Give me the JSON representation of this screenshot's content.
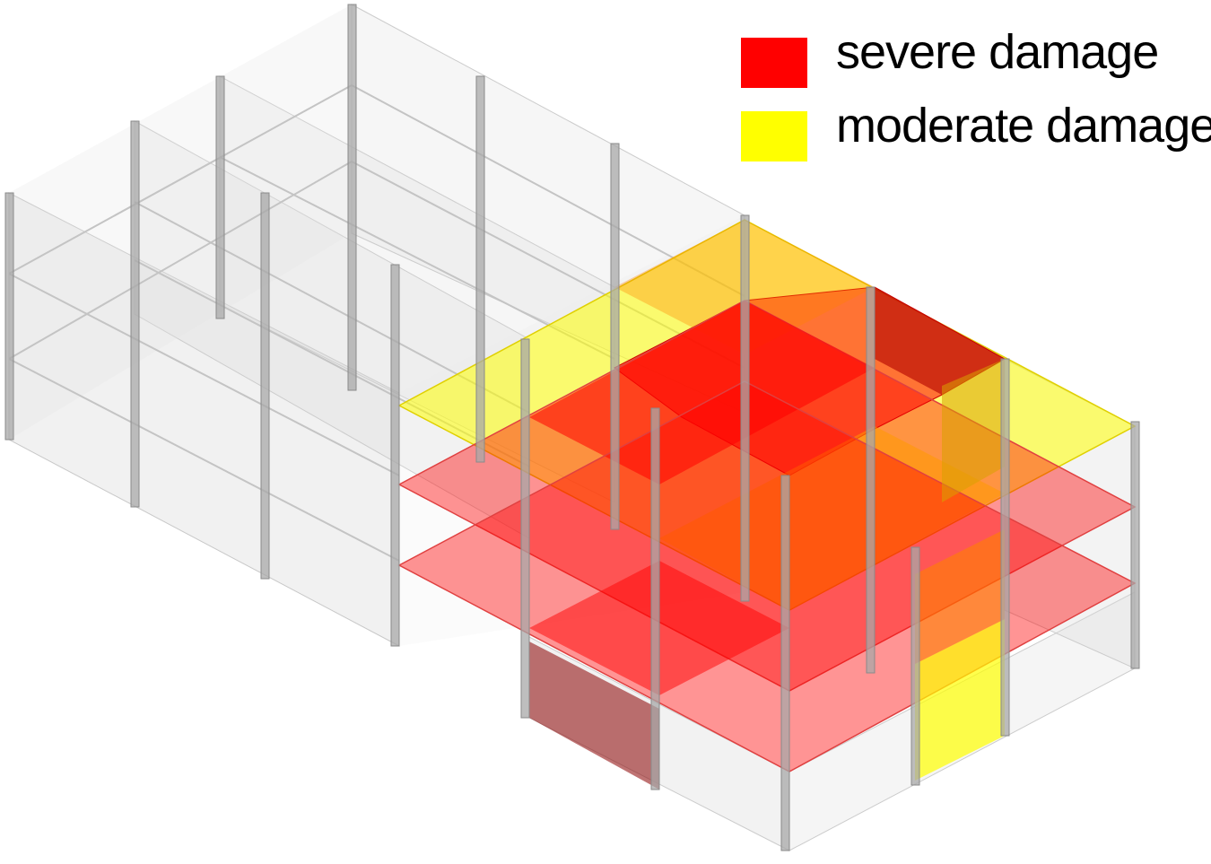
{
  "legend": {
    "items": [
      {
        "key": "severe",
        "label": "severe damage",
        "color": "#ff0000"
      },
      {
        "key": "moderate",
        "label": "moderate damage",
        "color": "#ffff00"
      }
    ]
  },
  "colors": {
    "wall": "#cfcfcf",
    "column": "#9a9a9a",
    "severe": "#ff0000",
    "moderate": "#ffff00"
  }
}
